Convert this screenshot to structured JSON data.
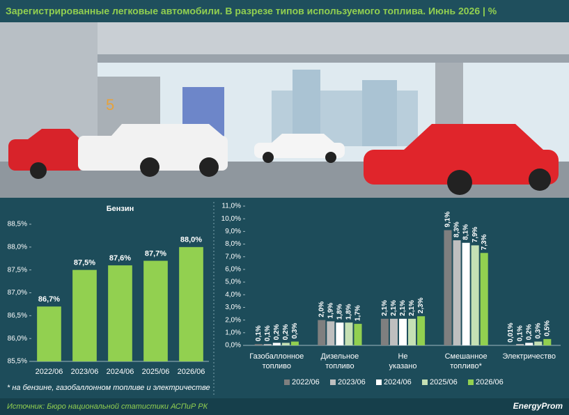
{
  "header": {
    "title": "Зарегистрированные легковые автомобили. В разрезе типов используемого топлива. Июнь 2026 | %"
  },
  "chart_data": [
    {
      "type": "bar",
      "title": "Бензин",
      "categories": [
        "2022/06",
        "2023/06",
        "2024/06",
        "2025/06",
        "2026/06"
      ],
      "values": [
        86.7,
        87.5,
        87.6,
        87.7,
        88.0
      ],
      "value_labels": [
        "86,7%",
        "87,5%",
        "87,6%",
        "87,7%",
        "88,0%"
      ],
      "color": "#92d050",
      "ylim": [
        85.5,
        88.5
      ],
      "yticks": [
        {
          "value": 85.5,
          "label": "85,5%"
        },
        {
          "value": 86.0,
          "label": "86,0%"
        },
        {
          "value": 86.5,
          "label": "86,5%"
        },
        {
          "value": 87.0,
          "label": "87,0%"
        },
        {
          "value": 87.5,
          "label": "87,5%"
        },
        {
          "value": 88.0,
          "label": "88,0%"
        },
        {
          "value": 88.5,
          "label": "88,5%"
        }
      ]
    },
    {
      "type": "grouped_bar",
      "categories": [
        "Газобаллонное топливо",
        "Дизельное топливо",
        "Не указано",
        "Смешанное топливо*",
        "Электричество"
      ],
      "series": [
        {
          "name": "2022/06",
          "color": "#7f7f7f",
          "values": [
            0.1,
            2.0,
            2.1,
            9.1,
            0.01
          ],
          "value_labels": [
            "0,1%",
            "2,0%",
            "2,1%",
            "9,1%",
            "0,01%"
          ]
        },
        {
          "name": "2023/06",
          "color": "#bfbfbf",
          "values": [
            0.1,
            1.9,
            2.1,
            8.3,
            0.1
          ],
          "value_labels": [
            "0,1%",
            "1,9%",
            "2,1%",
            "8,3%",
            "0,1%"
          ]
        },
        {
          "name": "2024/06",
          "color": "#ffffff",
          "values": [
            0.2,
            1.8,
            2.1,
            8.1,
            0.2
          ],
          "value_labels": [
            "0,2%",
            "1,8%",
            "2,1%",
            "8,1%",
            "0,2%"
          ]
        },
        {
          "name": "2025/06",
          "color": "#c5e0b4",
          "values": [
            0.2,
            1.8,
            2.1,
            7.9,
            0.3
          ],
          "value_labels": [
            "0,2%",
            "1,8%",
            "2,1%",
            "7,9%",
            "0,3%"
          ]
        },
        {
          "name": "2026/06",
          "color": "#92d050",
          "values": [
            0.3,
            1.7,
            2.3,
            7.3,
            0.5
          ],
          "value_labels": [
            "0,3%",
            "1,7%",
            "2,3%",
            "7,3%",
            "0,5%"
          ]
        }
      ],
      "ylim": [
        0,
        11
      ],
      "yticks": [
        {
          "value": 0,
          "label": "0,0%"
        },
        {
          "value": 1,
          "label": "1,0%"
        },
        {
          "value": 2,
          "label": "2,0%"
        },
        {
          "value": 3,
          "label": "3,0%"
        },
        {
          "value": 4,
          "label": "4,0%"
        },
        {
          "value": 5,
          "label": "5,0%"
        },
        {
          "value": 6,
          "label": "6,0%"
        },
        {
          "value": 7,
          "label": "7,0%"
        },
        {
          "value": 8,
          "label": "8,0%"
        },
        {
          "value": 9,
          "label": "9,0%"
        },
        {
          "value": 10,
          "label": "10,0%"
        },
        {
          "value": 11,
          "label": "11,0%"
        }
      ]
    }
  ],
  "footnote": "* на бензине, газобаллонном топливе и электричестве",
  "source": "Источник: Бюро национальной статистики АСПиР РК",
  "logo": "EnergyProm"
}
